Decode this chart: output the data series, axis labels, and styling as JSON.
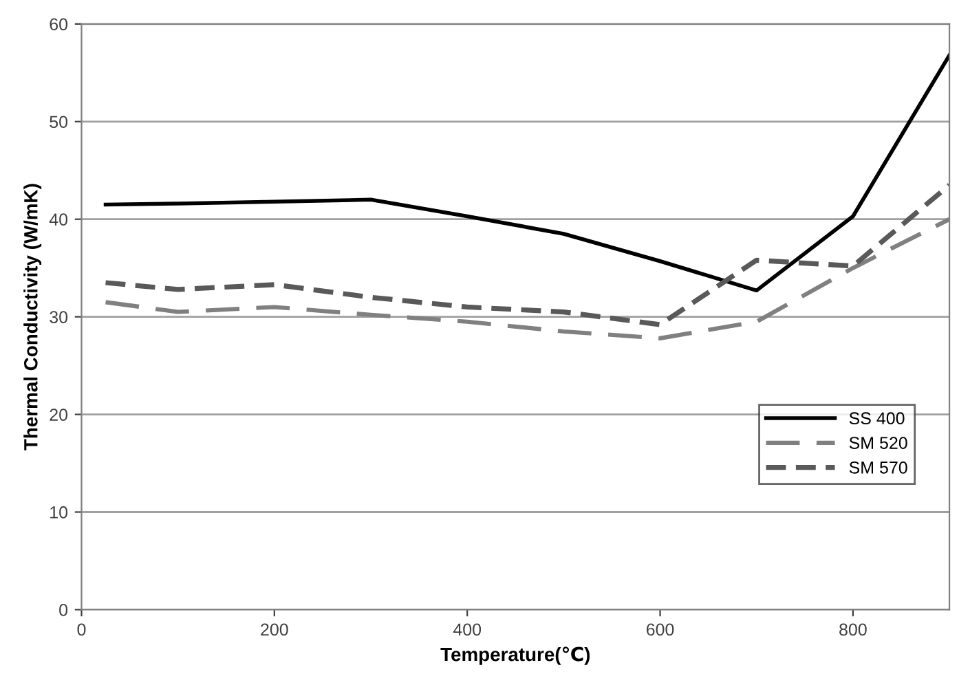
{
  "chart_data": {
    "type": "line",
    "xlabel": "Temperature(℃)",
    "ylabel": "Thermal Conductivity (W/mK)",
    "xlim": [
      0,
      900
    ],
    "xticks": [
      0,
      200,
      400,
      600,
      800
    ],
    "ylim": [
      0,
      60
    ],
    "yticks": [
      0,
      10,
      20,
      30,
      40,
      50,
      60
    ],
    "grid": "y",
    "legend": "bottom right",
    "marker": "none",
    "series": [
      {
        "name": "SS 400",
        "color": "#000000",
        "line_style": "solid",
        "x": [
          25,
          100,
          200,
          300,
          400,
          500,
          600,
          700,
          800,
          900
        ],
        "values": [
          41.5,
          41.6,
          41.8,
          42,
          40.3,
          38.5,
          35.7,
          32.7,
          40.3,
          56.8
        ]
      },
      {
        "name": "SM 520",
        "color": "#808080",
        "line_style": "dashed",
        "x": [
          25,
          100,
          200,
          300,
          400,
          500,
          600,
          700,
          800,
          900
        ],
        "values": [
          31.5,
          30.5,
          31,
          30.2,
          29.5,
          28.5,
          27.8,
          29.5,
          35,
          40
        ]
      },
      {
        "name": "SM 570",
        "color": "#595959",
        "line_style": "dotted",
        "x": [
          25,
          100,
          200,
          300,
          400,
          500,
          600,
          700,
          800,
          900
        ],
        "values": [
          33.5,
          32.8,
          33.3,
          32,
          31,
          30.5,
          29.2,
          35.8,
          35.2,
          43.5
        ]
      }
    ]
  }
}
